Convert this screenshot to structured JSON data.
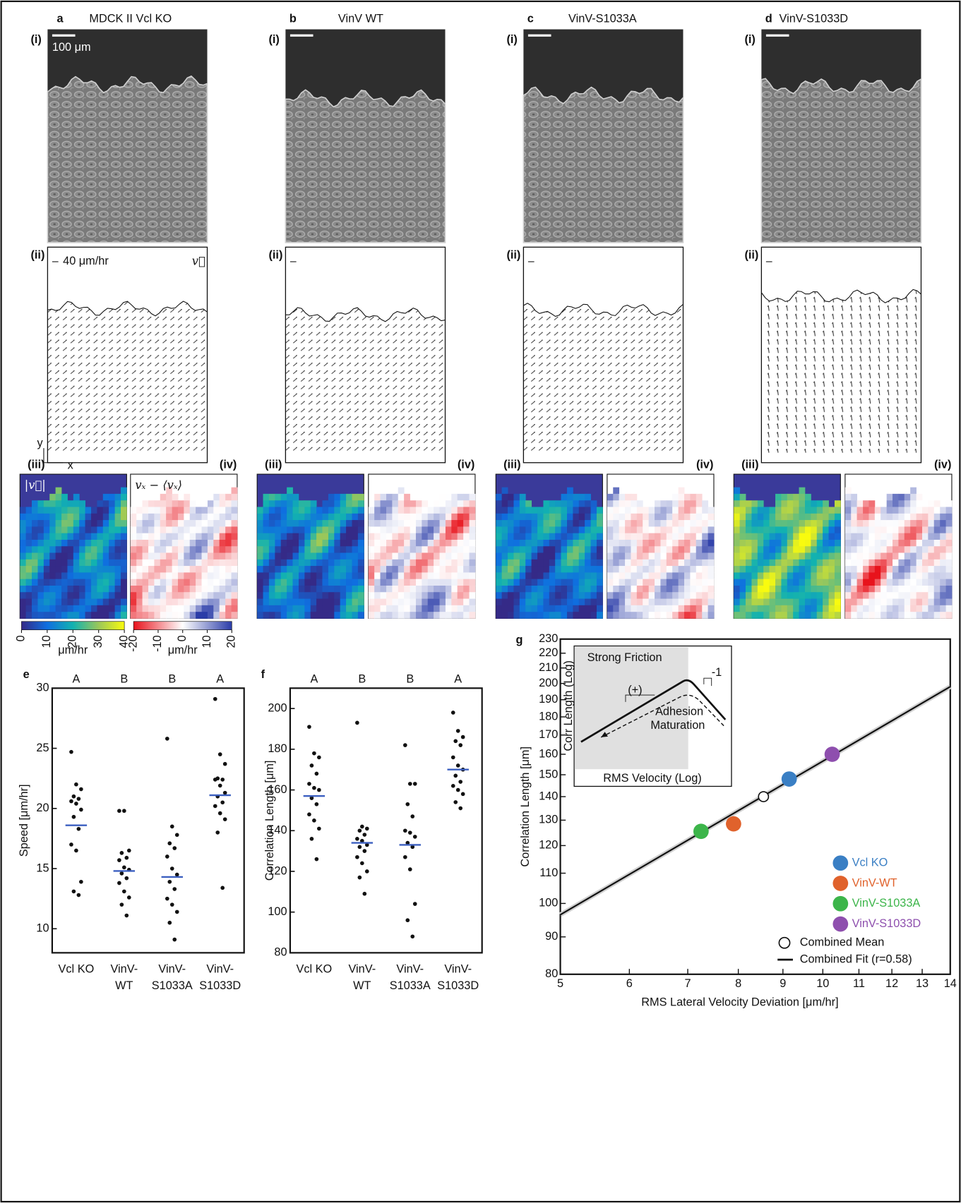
{
  "panels": [
    {
      "label": "a",
      "title": "MDCK II Vcl KO",
      "sub": [
        "(i)",
        "(ii)",
        "(iii)",
        "(iv)"
      ]
    },
    {
      "label": "b",
      "title": "VinV WT",
      "sub": [
        "(i)",
        "(ii)",
        "(iii)",
        "(iv)"
      ]
    },
    {
      "label": "c",
      "title": "VinV-S1033A",
      "sub": [
        "(i)",
        "(ii)",
        "(iii)",
        "(iv)"
      ]
    },
    {
      "label": "d",
      "title": "VinV-S1033D",
      "sub": [
        "(i)",
        "(ii)",
        "(iii)",
        "(iv)"
      ]
    }
  ],
  "scale_bar": "100 μm",
  "vector_scale": "40 μm/hr",
  "vector_symbol": "v⃗",
  "magnitude_symbol": "|v⃗|",
  "deviation_symbol": "vₓ − ⟨vₓ⟩",
  "axes": [
    "y",
    "x"
  ],
  "colorbars": [
    {
      "ticks": [
        0,
        10,
        20,
        30,
        40
      ],
      "unit": "μm/hr"
    },
    {
      "ticks": [
        -20,
        -10,
        0,
        10,
        20
      ],
      "unit": "μm/hr"
    }
  ],
  "chart_data": [
    {
      "type": "strip",
      "label": "e",
      "ylabel": "Speed [μm/hr]",
      "categories": [
        "Vcl KO",
        "VinV-\nWT",
        "VinV-\nS1033A",
        "VinV-\nS1033D"
      ],
      "groups": [
        "A",
        "B",
        "B",
        "A"
      ],
      "ylim": [
        8,
        30
      ],
      "yticks": [
        10,
        15,
        20,
        25,
        30
      ],
      "values": [
        [
          24.7,
          22.0,
          21.6,
          21.0,
          20.8,
          20.6,
          20.4,
          19.9,
          19.3,
          18.3,
          17.0,
          16.5,
          13.9,
          13.1,
          12.8
        ],
        [
          19.8,
          19.8,
          16.5,
          16.3,
          15.9,
          15.7,
          15.1,
          14.9,
          14.6,
          14.2,
          13.8,
          13.1,
          12.6,
          12.0,
          11.1
        ],
        [
          25.8,
          18.5,
          17.8,
          17.1,
          16.7,
          16.0,
          15.0,
          14.5,
          13.9,
          13.3,
          12.5,
          12.0,
          11.4,
          10.5,
          9.1
        ],
        [
          29.1,
          24.5,
          23.7,
          22.5,
          22.4,
          22.4,
          21.9,
          21.3,
          21.0,
          20.5,
          20.2,
          19.6,
          19.1,
          18.0,
          13.4
        ]
      ],
      "means": [
        18.6,
        14.8,
        14.3,
        21.1
      ],
      "mean_color": "#3b5fc0",
      "color": "#111111"
    },
    {
      "type": "strip",
      "label": "f",
      "ylabel": "Correlation Length [μm]",
      "categories": [
        "Vcl KO",
        "VinV-\nWT",
        "VinV-\nS1033A",
        "VinV-\nS1033D"
      ],
      "groups": [
        "A",
        "B",
        "B",
        "A"
      ],
      "ylim": [
        80,
        210
      ],
      "yticks": [
        80,
        100,
        120,
        140,
        160,
        180,
        200
      ],
      "values": [
        [
          191,
          178,
          176,
          172,
          168,
          163,
          161,
          160,
          156,
          153,
          148,
          145,
          141,
          136,
          126
        ],
        [
          193,
          142,
          141,
          140,
          138,
          136,
          135,
          133,
          132,
          130,
          127,
          124,
          120,
          117,
          109
        ],
        [
          182,
          163,
          163,
          153,
          147,
          140,
          139,
          137,
          134,
          132,
          127,
          121,
          104,
          96,
          88
        ],
        [
          198,
          189,
          186,
          184,
          182,
          176,
          172,
          170,
          167,
          164,
          162,
          160,
          158,
          154,
          151
        ]
      ],
      "means": [
        157,
        134,
        133,
        170
      ],
      "mean_color": "#3b5fc0",
      "color": "#111111"
    },
    {
      "type": "scatter",
      "label": "g",
      "xlabel": "RMS Lateral Velocity Deviation [μm/hr]",
      "ylabel": "Correlation Length [μm]",
      "log_x": true,
      "log_y": true,
      "xlim": [
        5,
        14
      ],
      "ylim": [
        80,
        230
      ],
      "xticks": [
        5,
        6,
        7,
        8,
        9,
        10,
        11,
        12,
        13,
        14
      ],
      "yticks": [
        80,
        90,
        100,
        110,
        120,
        130,
        140,
        150,
        160,
        170,
        180,
        190,
        200,
        210,
        220,
        230
      ],
      "series": [
        {
          "name": "Vcl KO",
          "color": "#3a7fc4",
          "x": [
            9.15
          ],
          "values": [
            148
          ]
        },
        {
          "name": "VinV-WT",
          "color": "#e0622c",
          "x": [
            7.9
          ],
          "values": [
            128.5
          ]
        },
        {
          "name": "VinV-S1033A",
          "color": "#3cb54a",
          "x": [
            7.25
          ],
          "values": [
            125.5
          ]
        },
        {
          "name": "VinV-S1033D",
          "color": "#8e4fae",
          "x": [
            10.25
          ],
          "values": [
            160
          ]
        }
      ],
      "mean": {
        "name": "Combined Mean",
        "x": [
          8.55
        ],
        "values": [
          140
        ]
      },
      "fit": {
        "name": "Combined Fit (r=0.58)",
        "x": [
          5,
          14
        ],
        "values": [
          96.5,
          198
        ]
      },
      "inset": {
        "title": "Strong Friction",
        "ylabel": "Corr Length (Log)",
        "xlabel": "RMS Velocity (Log)",
        "slope_pos": "(+)",
        "slope_neg": "-1",
        "note": [
          "Adhesion",
          "Maturation"
        ]
      }
    }
  ]
}
